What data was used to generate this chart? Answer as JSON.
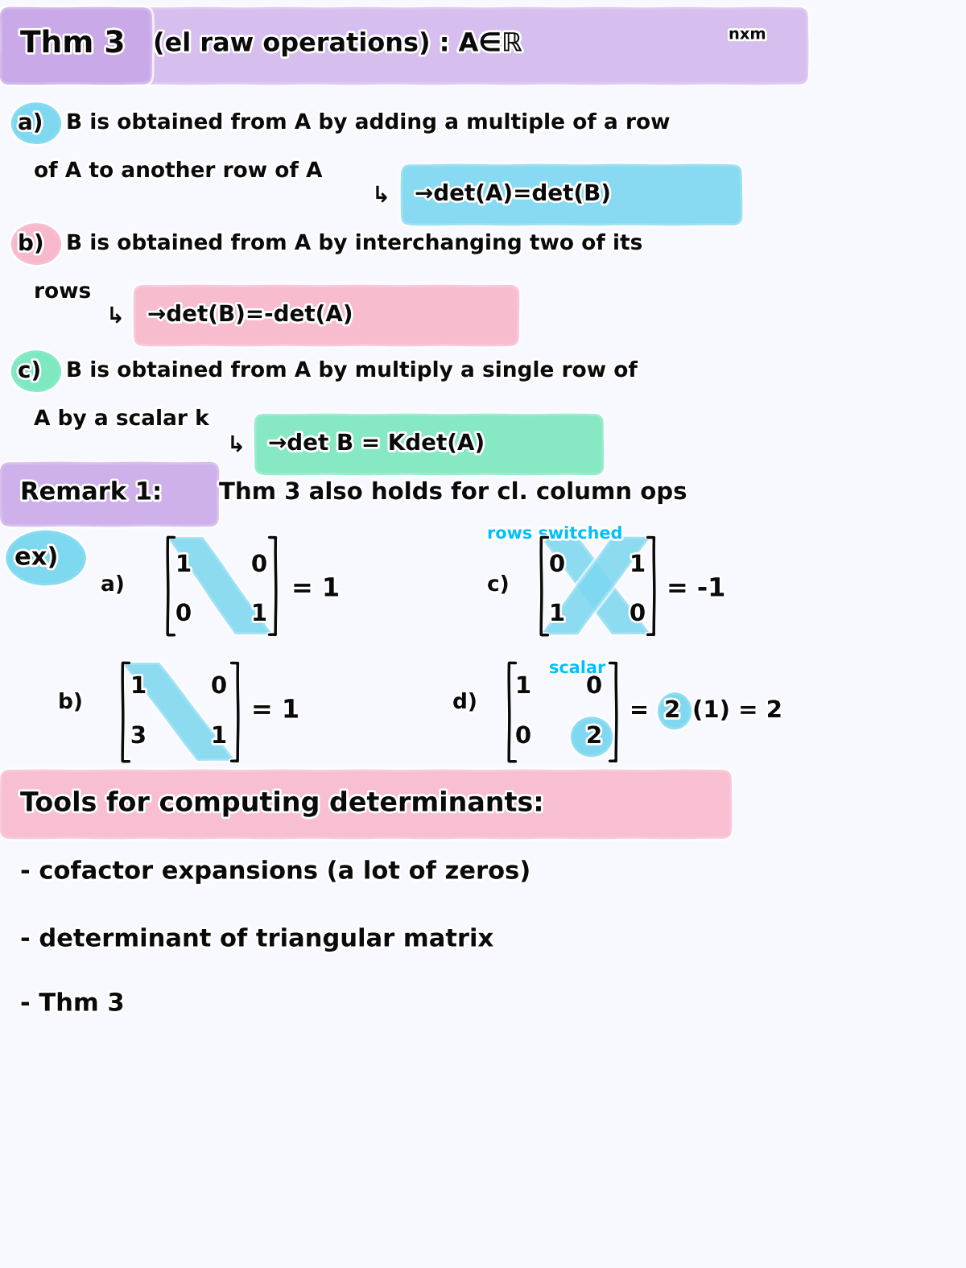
{
  "bg_color": "#f8f8ff",
  "title_highlight": "#c9a8e8",
  "cyan_highlight": "#7dd8f0",
  "pink_highlight": "#f8b8cc",
  "green_highlight": "#7de8c0",
  "purple_highlight": "#c9a8e8",
  "cyan_text": "#00bfff",
  "black_text": "#0a0a0a",
  "figsize": [
    12,
    15.75
  ],
  "dpi": 100
}
